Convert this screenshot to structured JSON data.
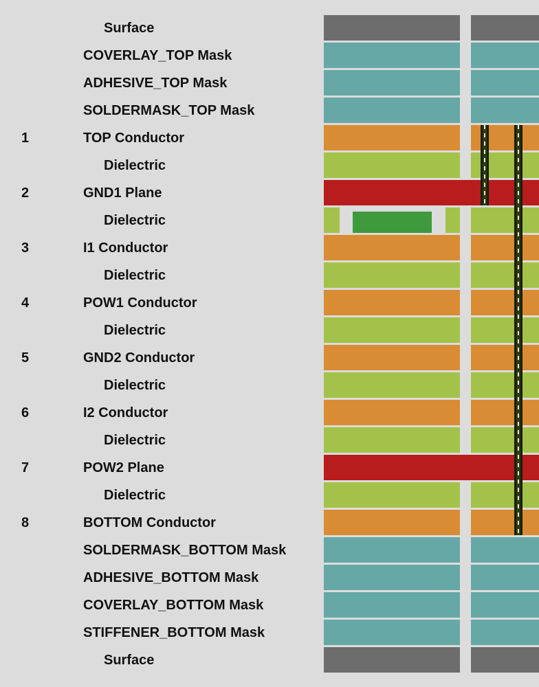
{
  "colors": {
    "surface": "#6d6d6d",
    "mask": "#66a8a6",
    "conductor": "#d98c34",
    "dielectric": "#a3c24a",
    "plane": "#b81c1c",
    "core_chip": "#3e9a3c",
    "via": "#2e3a13",
    "background": "#dcdcdc"
  },
  "layers": [
    {
      "num": "",
      "name": "Surface",
      "kind": "surface"
    },
    {
      "num": "",
      "name": "COVERLAY_TOP Mask",
      "kind": "mask"
    },
    {
      "num": "",
      "name": "ADHESIVE_TOP Mask",
      "kind": "mask"
    },
    {
      "num": "",
      "name": "SOLDERMASK_TOP Mask",
      "kind": "mask"
    },
    {
      "num": "1",
      "name": "TOP Conductor",
      "kind": "conductor"
    },
    {
      "num": "",
      "name": "Dielectric",
      "kind": "dielectric"
    },
    {
      "num": "2",
      "name": "GND1 Plane",
      "kind": "plane"
    },
    {
      "num": "",
      "name": "Dielectric",
      "kind": "dielectric-core"
    },
    {
      "num": "3",
      "name": "I1 Conductor",
      "kind": "conductor"
    },
    {
      "num": "",
      "name": "Dielectric",
      "kind": "dielectric"
    },
    {
      "num": "4",
      "name": "POW1 Conductor",
      "kind": "conductor"
    },
    {
      "num": "",
      "name": "Dielectric",
      "kind": "dielectric"
    },
    {
      "num": "5",
      "name": "GND2 Conductor",
      "kind": "conductor"
    },
    {
      "num": "",
      "name": "Dielectric",
      "kind": "dielectric"
    },
    {
      "num": "6",
      "name": "I2 Conductor",
      "kind": "conductor"
    },
    {
      "num": "",
      "name": "Dielectric",
      "kind": "dielectric"
    },
    {
      "num": "7",
      "name": "POW2 Plane",
      "kind": "plane"
    },
    {
      "num": "",
      "name": "Dielectric",
      "kind": "dielectric"
    },
    {
      "num": "8",
      "name": "BOTTOM Conductor",
      "kind": "conductor"
    },
    {
      "num": "",
      "name": "SOLDERMASK_BOTTOM Mask",
      "kind": "mask"
    },
    {
      "num": "",
      "name": "ADHESIVE_BOTTOM Mask",
      "kind": "mask"
    },
    {
      "num": "",
      "name": "COVERLAY_BOTTOM Mask",
      "kind": "mask"
    },
    {
      "num": "",
      "name": "STIFFENER_BOTTOM Mask",
      "kind": "mask"
    },
    {
      "num": "",
      "name": "Surface",
      "kind": "surface"
    }
  ],
  "vias": [
    {
      "name": "via-top-gnd1",
      "from_layer": 4,
      "to_layer": 6
    },
    {
      "name": "via-top-bottom",
      "from_layer": 4,
      "to_layer": 18
    }
  ]
}
